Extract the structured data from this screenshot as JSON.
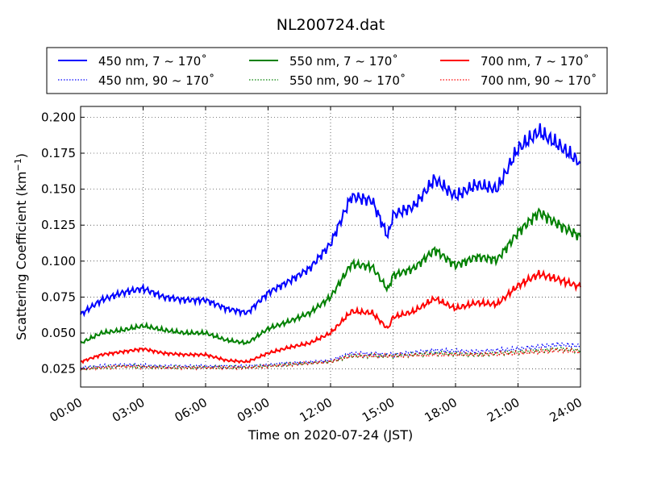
{
  "chart_data": {
    "type": "line",
    "title": "NL200724.dat",
    "xlabel": "Time on 2020-07-24 (JST)",
    "ylabel_main": "Scattering Coefficient (km",
    "ylabel_sup": "−1",
    "ylabel_end": ")",
    "xlim": [
      "2020-07-24 00:00",
      "2020-07-25 00:00"
    ],
    "ylim": [
      0.0125,
      0.2075
    ],
    "x_ticks": [
      {
        "hour": 0,
        "label": "00:00"
      },
      {
        "hour": 3,
        "label": "03:00"
      },
      {
        "hour": 6,
        "label": "06:00"
      },
      {
        "hour": 9,
        "label": "09:00"
      },
      {
        "hour": 12,
        "label": "12:00"
      },
      {
        "hour": 15,
        "label": "15:00"
      },
      {
        "hour": 18,
        "label": "18:00"
      },
      {
        "hour": 21,
        "label": "21:00"
      },
      {
        "hour": 24,
        "label": "24:00"
      }
    ],
    "y_ticks": [
      {
        "value": 0.025,
        "label": "0.025"
      },
      {
        "value": 0.05,
        "label": "0.050"
      },
      {
        "value": 0.075,
        "label": "0.075"
      },
      {
        "value": 0.1,
        "label": "0.100"
      },
      {
        "value": 0.125,
        "label": "0.125"
      },
      {
        "value": 0.15,
        "label": "0.150"
      },
      {
        "value": 0.175,
        "label": "0.175"
      },
      {
        "value": 0.2,
        "label": "0.200"
      }
    ],
    "grid": true,
    "legend_position": "top, above plot",
    "series": [
      {
        "name": "450 nm, 7 ~ 170˚",
        "color": "#0000ff",
        "style": "solid",
        "time": [
          "00:00",
          "01:00",
          "02:00",
          "03:00",
          "04:00",
          "05:00",
          "06:00",
          "07:00",
          "08:00",
          "09:00",
          "10:00",
          "11:00",
          "12:00",
          "13:00",
          "14:00",
          "14:45",
          "15:00",
          "16:00",
          "17:00",
          "18:00",
          "19:00",
          "20:00",
          "21:00",
          "22:00",
          "23:00",
          "24:00"
        ],
        "y": [
          0.063,
          0.073,
          0.078,
          0.081,
          0.075,
          0.073,
          0.073,
          0.067,
          0.064,
          0.078,
          0.086,
          0.095,
          0.112,
          0.145,
          0.142,
          0.117,
          0.132,
          0.138,
          0.157,
          0.145,
          0.153,
          0.15,
          0.178,
          0.19,
          0.18,
          0.168
        ]
      },
      {
        "name": "550 nm, 7 ~ 170˚",
        "color": "#008000",
        "style": "solid",
        "time": [
          "00:00",
          "01:00",
          "02:00",
          "03:00",
          "04:00",
          "05:00",
          "06:00",
          "07:00",
          "08:00",
          "09:00",
          "10:00",
          "11:00",
          "12:00",
          "13:00",
          "14:00",
          "14:45",
          "15:00",
          "16:00",
          "17:00",
          "18:00",
          "19:00",
          "20:00",
          "21:00",
          "22:00",
          "23:00",
          "24:00"
        ],
        "y": [
          0.043,
          0.05,
          0.052,
          0.055,
          0.052,
          0.05,
          0.05,
          0.045,
          0.043,
          0.053,
          0.058,
          0.064,
          0.075,
          0.098,
          0.096,
          0.08,
          0.09,
          0.095,
          0.108,
          0.097,
          0.103,
          0.101,
          0.12,
          0.134,
          0.125,
          0.117
        ]
      },
      {
        "name": "700 nm, 7 ~ 170˚",
        "color": "#ff0000",
        "style": "solid",
        "time": [
          "00:00",
          "01:00",
          "02:00",
          "03:00",
          "04:00",
          "05:00",
          "06:00",
          "07:00",
          "08:00",
          "09:00",
          "10:00",
          "11:00",
          "12:00",
          "13:00",
          "14:00",
          "14:45",
          "15:00",
          "16:00",
          "17:00",
          "18:00",
          "19:00",
          "20:00",
          "21:00",
          "22:00",
          "23:00",
          "24:00"
        ],
        "y": [
          0.03,
          0.035,
          0.037,
          0.039,
          0.036,
          0.035,
          0.035,
          0.031,
          0.03,
          0.036,
          0.04,
          0.043,
          0.05,
          0.065,
          0.064,
          0.053,
          0.061,
          0.065,
          0.074,
          0.067,
          0.071,
          0.07,
          0.083,
          0.091,
          0.087,
          0.082
        ]
      },
      {
        "name": "450 nm, 90 ~ 170˚",
        "color": "#0000ff",
        "style": "dotted",
        "time": [
          "00:00",
          "02:00",
          "04:00",
          "06:00",
          "08:00",
          "10:00",
          "12:00",
          "13:00",
          "15:00",
          "17:00",
          "19:00",
          "21:00",
          "23:00",
          "24:00"
        ],
        "y": [
          0.026,
          0.028,
          0.027,
          0.027,
          0.027,
          0.029,
          0.031,
          0.036,
          0.035,
          0.038,
          0.037,
          0.039,
          0.042,
          0.041
        ]
      },
      {
        "name": "550 nm, 90 ~ 170˚",
        "color": "#008000",
        "style": "dotted",
        "time": [
          "00:00",
          "02:00",
          "04:00",
          "06:00",
          "08:00",
          "10:00",
          "12:00",
          "13:00",
          "15:00",
          "17:00",
          "19:00",
          "21:00",
          "23:00",
          "24:00"
        ],
        "y": [
          0.025,
          0.027,
          0.026,
          0.026,
          0.026,
          0.028,
          0.03,
          0.034,
          0.034,
          0.036,
          0.035,
          0.037,
          0.039,
          0.038
        ]
      },
      {
        "name": "700 nm, 90 ~ 170˚",
        "color": "#ff0000",
        "style": "dotted",
        "time": [
          "00:00",
          "02:00",
          "04:00",
          "06:00",
          "08:00",
          "10:00",
          "12:00",
          "13:00",
          "15:00",
          "17:00",
          "19:00",
          "21:00",
          "23:00",
          "24:00"
        ],
        "y": [
          0.025,
          0.027,
          0.026,
          0.026,
          0.026,
          0.028,
          0.03,
          0.034,
          0.034,
          0.035,
          0.035,
          0.036,
          0.038,
          0.037
        ]
      }
    ]
  }
}
